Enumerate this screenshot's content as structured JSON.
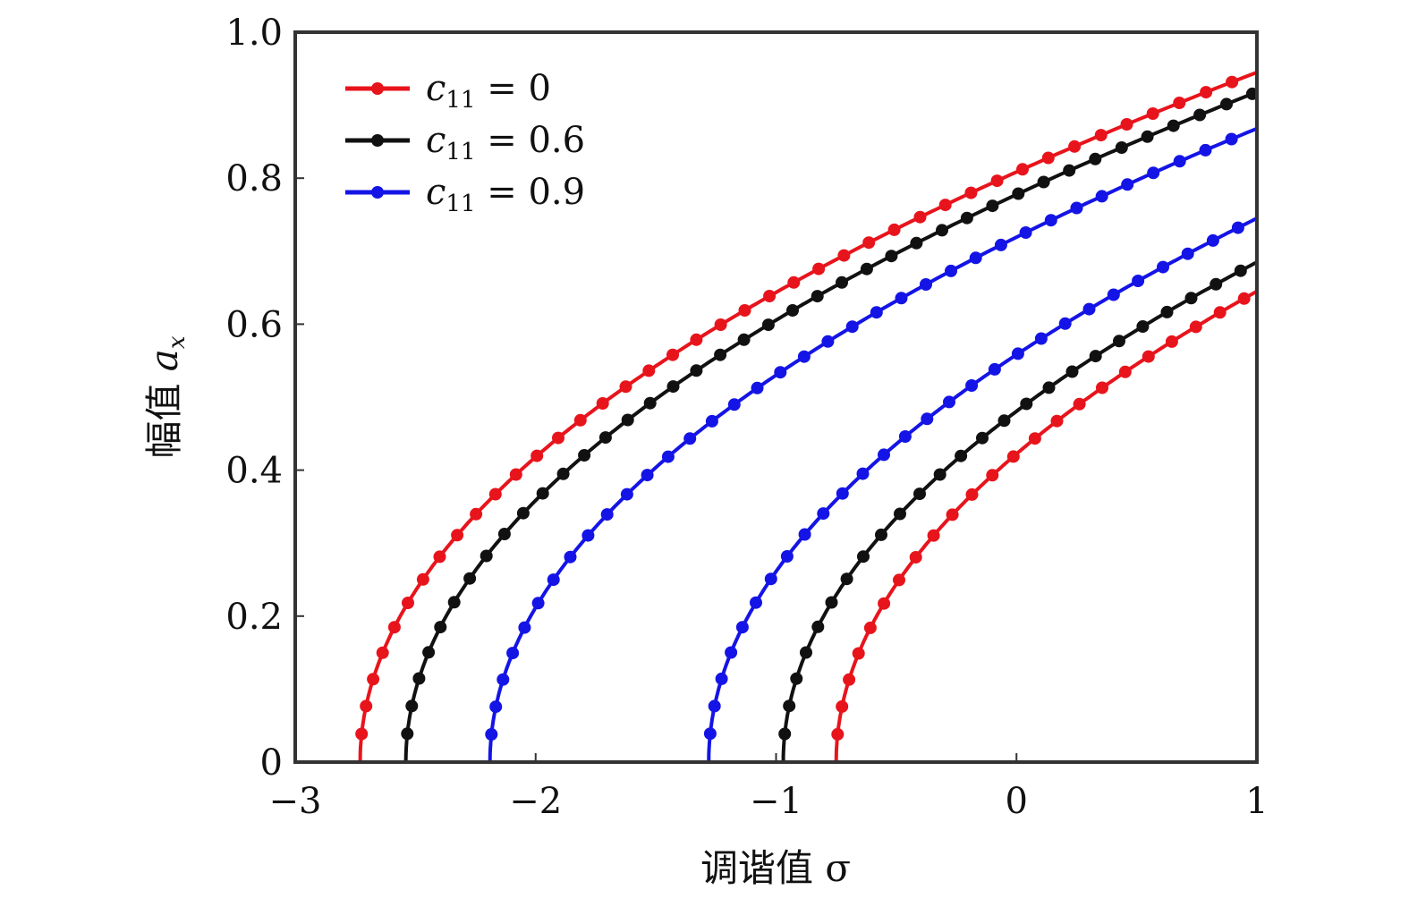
{
  "chart_data": {
    "type": "line",
    "title": "",
    "xlabel": "调谐值 σ",
    "ylabel": "幅值 a_x",
    "xlim": [
      -3,
      1
    ],
    "ylim": [
      0,
      1
    ],
    "xticks": [
      -3,
      -2,
      -1,
      0,
      1
    ],
    "yticks": [
      0,
      0.2,
      0.4,
      0.6,
      0.8,
      1.0
    ],
    "xtick_labels": [
      "−3",
      "−2",
      "−1",
      "0",
      "1"
    ],
    "ytick_labels": [
      "0",
      "0.2",
      "0.4",
      "0.6",
      "0.8",
      "1.0"
    ],
    "legend_position": "top-left",
    "series": [
      {
        "name": "c11 = 0",
        "legend_value": "0",
        "color": "#e8141c",
        "branch": "upper",
        "x0": -2.73,
        "y_end": 0.945
      },
      {
        "name": "c11 = 0.6",
        "legend_value": "0.6",
        "color": "#111111",
        "branch": "upper",
        "x0": -2.54,
        "y_end": 0.918
      },
      {
        "name": "c11 = 0.9",
        "legend_value": "0.9",
        "color": "#1414e6",
        "branch": "upper",
        "x0": -2.19,
        "y_end": 0.868
      },
      {
        "name": "c11 = 0",
        "color": "#e8141c",
        "branch": "lower",
        "x0": -0.75,
        "y_end": 0.645
      },
      {
        "name": "c11 = 0.6",
        "color": "#111111",
        "branch": "lower",
        "x0": -0.97,
        "y_end": 0.685
      },
      {
        "name": "c11 = 0.9",
        "color": "#1414e6",
        "branch": "lower",
        "x0": -1.28,
        "y_end": 0.745
      }
    ]
  }
}
